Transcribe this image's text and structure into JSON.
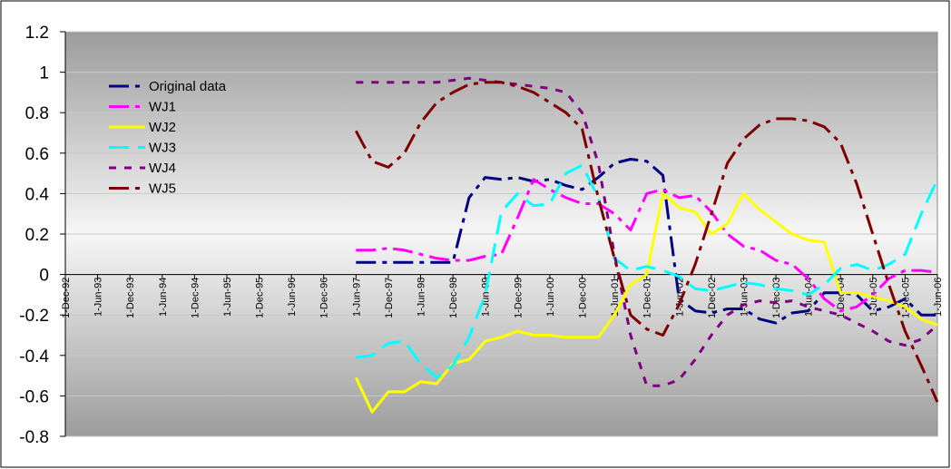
{
  "chart_data": {
    "type": "line",
    "title": "",
    "xlabel": "",
    "ylabel": "",
    "ylim": [
      -0.8,
      1.2
    ],
    "yticks": [
      -0.8,
      -0.6,
      -0.4,
      -0.2,
      0,
      0.2,
      0.4,
      0.6,
      0.8,
      1,
      1.2
    ],
    "ytick_labels": [
      "-0.8",
      "-0.6",
      "-0.4",
      "-0.2",
      "0",
      "0.2",
      "0.4",
      "0.6",
      "0.8",
      "1",
      "1.2"
    ],
    "grid": true,
    "legend_position": "top-left",
    "background": "gradient gray",
    "x_labels": [
      "1-Dec-92",
      "1-Jun-93",
      "1-Dec-93",
      "1-Jun-94",
      "1-Dec-94",
      "1-Jun-95",
      "1-Dec-95",
      "1-Jun-96",
      "1-Dec-96",
      "1-Jun-97",
      "1-Dec-97",
      "1-Jun-98",
      "1-Dec-98",
      "1-Jun-99",
      "1-Dec-99",
      "1-Jun-00",
      "1-Dec-00",
      "1-Jun-01",
      "1-Dec-01",
      "1-Jun-02",
      "1-Dec-02",
      "1-Jun-03",
      "1-Dec-03",
      "1-Jun-04",
      "1-Dec-04",
      "1-Jun-05",
      "1-Dec-05",
      "1-Jun-06"
    ],
    "x": [
      "1-Jun-97",
      "1-Sep-97",
      "1-Dec-97",
      "1-Mar-98",
      "1-Jun-98",
      "1-Sep-98",
      "1-Dec-98",
      "1-Mar-99",
      "1-Jun-99",
      "1-Sep-99",
      "1-Dec-99",
      "1-Mar-00",
      "1-Jun-00",
      "1-Sep-00",
      "1-Dec-00",
      "1-Mar-01",
      "1-Jun-01",
      "1-Sep-01",
      "1-Dec-01",
      "1-Mar-02",
      "1-Jun-02",
      "1-Sep-02",
      "1-Dec-02",
      "1-Mar-03",
      "1-Jun-03",
      "1-Sep-03",
      "1-Dec-03",
      "1-Mar-04",
      "1-Jun-04",
      "1-Sep-04",
      "1-Dec-04",
      "1-Mar-05",
      "1-Jun-05",
      "1-Sep-05",
      "1-Dec-05",
      "1-Mar-06",
      "1-Jun-06"
    ],
    "series": [
      {
        "name": "Original data",
        "color": "#000080",
        "dash": "22,7,5,7",
        "width": 3,
        "values": [
          0.06,
          0.06,
          0.06,
          0.06,
          0.06,
          0.06,
          0.06,
          0.38,
          0.48,
          0.47,
          0.48,
          0.46,
          0.47,
          0.44,
          0.42,
          0.48,
          0.55,
          0.57,
          0.56,
          0.49,
          -0.12,
          -0.18,
          -0.19,
          -0.17,
          -0.17,
          -0.22,
          -0.24,
          -0.19,
          -0.18,
          -0.09,
          -0.09,
          -0.1,
          -0.18,
          -0.16,
          -0.12,
          -0.2,
          -0.2
        ]
      },
      {
        "name": "WJ1",
        "color": "#FF00FF",
        "dash": "22,7,5,7",
        "width": 3,
        "values": [
          0.12,
          0.12,
          0.13,
          0.12,
          0.1,
          0.08,
          0.07,
          0.07,
          0.09,
          0.1,
          0.28,
          0.47,
          0.42,
          0.38,
          0.35,
          0.35,
          0.3,
          0.22,
          0.4,
          0.42,
          0.38,
          0.39,
          0.31,
          0.2,
          0.14,
          0.12,
          0.07,
          0.05,
          -0.02,
          -0.12,
          -0.18,
          -0.16,
          -0.1,
          -0.02,
          0.02,
          0.02,
          0.01
        ]
      },
      {
        "name": "WJ2",
        "color": "#FFFF00",
        "dash": "",
        "width": 3,
        "values": [
          -0.51,
          -0.68,
          -0.58,
          -0.58,
          -0.53,
          -0.54,
          -0.44,
          -0.42,
          -0.33,
          -0.31,
          -0.28,
          -0.3,
          -0.3,
          -0.31,
          -0.31,
          -0.31,
          -0.2,
          -0.05,
          0.0,
          0.4,
          0.33,
          0.31,
          0.2,
          0.25,
          0.4,
          0.32,
          0.26,
          0.2,
          0.17,
          0.16,
          -0.09,
          -0.09,
          -0.11,
          -0.13,
          -0.16,
          -0.22,
          -0.25
        ]
      },
      {
        "name": "WJ3",
        "color": "#00FFFF",
        "dash": "22,10",
        "width": 3,
        "values": [
          -0.41,
          -0.4,
          -0.34,
          -0.33,
          -0.44,
          -0.51,
          -0.45,
          -0.31,
          -0.1,
          0.31,
          0.4,
          0.34,
          0.35,
          0.5,
          0.54,
          0.38,
          0.08,
          0.02,
          0.04,
          0.02,
          -0.01,
          -0.07,
          -0.08,
          -0.06,
          -0.04,
          -0.05,
          -0.07,
          -0.08,
          -0.1,
          -0.05,
          0.03,
          0.05,
          0.02,
          0.05,
          0.1,
          0.3,
          0.47
        ]
      },
      {
        "name": "WJ4",
        "color": "#800080",
        "dash": "8,9",
        "width": 3,
        "values": [
          0.95,
          0.95,
          0.95,
          0.95,
          0.95,
          0.95,
          0.96,
          0.97,
          0.96,
          0.95,
          0.94,
          0.93,
          0.92,
          0.9,
          0.8,
          0.55,
          0.1,
          -0.3,
          -0.55,
          -0.55,
          -0.52,
          -0.42,
          -0.3,
          -0.2,
          -0.15,
          -0.13,
          -0.14,
          -0.13,
          -0.16,
          -0.18,
          -0.2,
          -0.24,
          -0.28,
          -0.33,
          -0.35,
          -0.32,
          -0.25
        ]
      },
      {
        "name": "WJ5",
        "color": "#800000",
        "dash": "22,7,5,7",
        "width": 3,
        "values": [
          0.71,
          0.56,
          0.53,
          0.6,
          0.75,
          0.85,
          0.9,
          0.94,
          0.95,
          0.95,
          0.93,
          0.9,
          0.85,
          0.8,
          0.72,
          0.38,
          0.08,
          -0.2,
          -0.27,
          -0.3,
          -0.15,
          0.05,
          0.3,
          0.55,
          0.67,
          0.74,
          0.77,
          0.77,
          0.76,
          0.73,
          0.65,
          0.45,
          0.2,
          -0.05,
          -0.28,
          -0.45,
          -0.63
        ]
      }
    ]
  }
}
